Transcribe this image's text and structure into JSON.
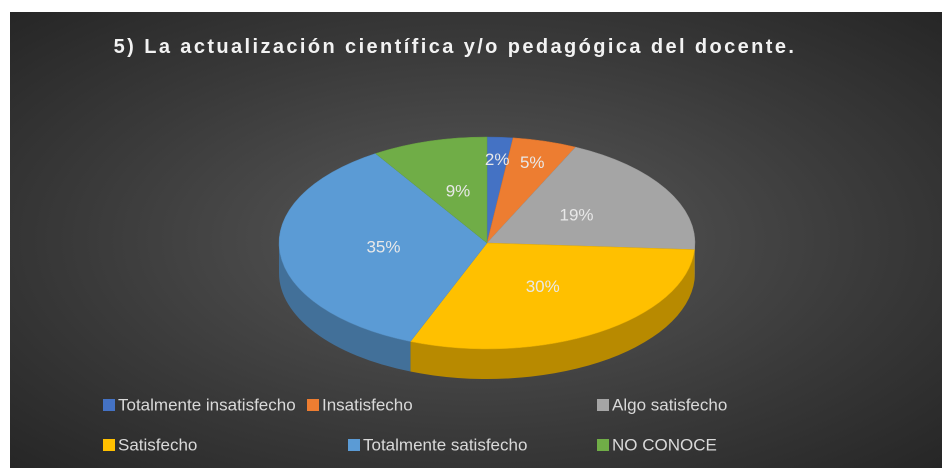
{
  "chart_data": {
    "type": "pie3d",
    "title": "5) La actualización científica y/o pedagógica del docente.",
    "categories": [
      "Totalmente insatisfecho",
      "Insatisfecho",
      "Algo satisfecho",
      "Satisfecho",
      "Totalmente satisfecho",
      "NO CONOCE"
    ],
    "values": [
      2,
      5,
      19,
      30,
      35,
      9
    ],
    "value_labels": [
      "2%",
      "5%",
      "19%",
      "30%",
      "35%",
      "9%"
    ],
    "colors": [
      "#4472c4",
      "#ed7d31",
      "#a5a5a5",
      "#ffc000",
      "#5b9bd5",
      "#70ad47"
    ],
    "legend": "bottom"
  }
}
